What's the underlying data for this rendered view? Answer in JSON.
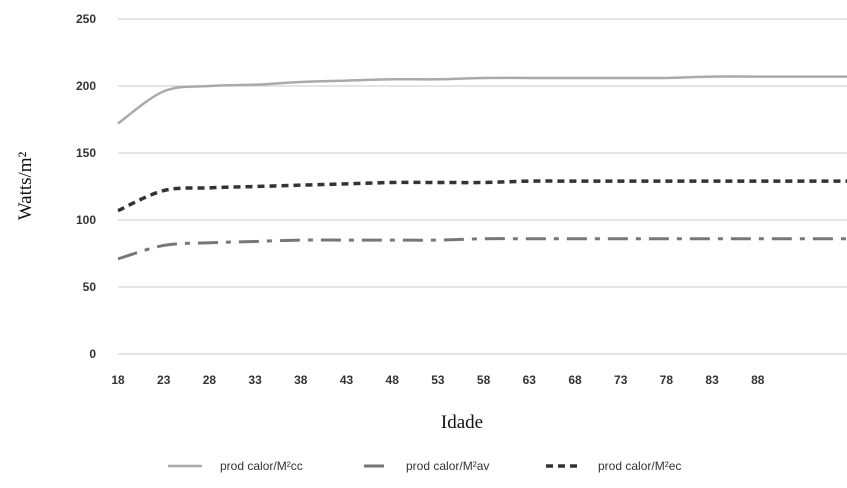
{
  "chart_data": {
    "type": "line",
    "title": "",
    "xlabel": "Idade",
    "ylabel": "Watts/m²",
    "ylim": [
      0,
      250
    ],
    "yticks": [
      0,
      50,
      100,
      150,
      200,
      250
    ],
    "x": [
      18,
      23,
      28,
      33,
      38,
      43,
      48,
      53,
      58,
      63,
      68,
      73,
      78,
      83,
      88
    ],
    "grid": "horizontal",
    "legend_position": "bottom",
    "series": [
      {
        "name": "prod calor/M²cc",
        "color": "#aaaaaa",
        "dash": "solid",
        "values": [
          172,
          196,
          200,
          201,
          203,
          204,
          205,
          205,
          206,
          206,
          206,
          206,
          206,
          207,
          207
        ]
      },
      {
        "name": "prod calor/M²av",
        "color": "#777777",
        "dash": "dashdot",
        "values": [
          71,
          81,
          83,
          84,
          85,
          85,
          85,
          85,
          86,
          86,
          86,
          86,
          86,
          86,
          86
        ]
      },
      {
        "name": "prod calor/M²ec",
        "color": "#333333",
        "dash": "dashed",
        "values": [
          107,
          122,
          124,
          125,
          126,
          127,
          128,
          128,
          128,
          129,
          129,
          129,
          129,
          129,
          129
        ]
      }
    ]
  }
}
